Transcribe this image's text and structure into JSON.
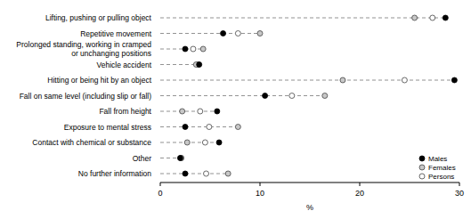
{
  "chart_data": {
    "type": "dot",
    "orientation": "horizontal",
    "x_label": "%",
    "categories": [
      "Lifting, pushing or pulling object",
      "Repetitive movement",
      "Prolonged standing, working in cramped\nor unchanging positions",
      "Vehicle accident",
      "Hitting or being hit by an object",
      "Fall on same level (including slip or fall)",
      "Fall from height",
      "Exposure to mental stress",
      "Contact with chemical or substance",
      "Other",
      "No further information"
    ],
    "series": [
      {
        "name": "Males",
        "color": "#000000",
        "marker": "filled",
        "values": [
          28.6,
          6.3,
          2.5,
          3.9,
          29.5,
          10.5,
          5.7,
          2.5,
          5.9,
          2.0,
          2.5
        ]
      },
      {
        "name": "Females",
        "color": "#c8c8c8",
        "marker": "open",
        "values": [
          25.5,
          10.0,
          4.3,
          3.6,
          18.3,
          16.5,
          2.2,
          7.8,
          2.7,
          2.1,
          6.8
        ]
      },
      {
        "name": "Persons",
        "color": "#ffffff",
        "marker": "open",
        "values": [
          27.3,
          7.8,
          3.3,
          3.8,
          24.5,
          13.2,
          4.0,
          4.9,
          4.5,
          2.1,
          4.6
        ]
      }
    ],
    "xlim": [
      0,
      30
    ],
    "xticks": [
      0,
      10,
      20,
      30
    ],
    "legend": "lower right"
  }
}
